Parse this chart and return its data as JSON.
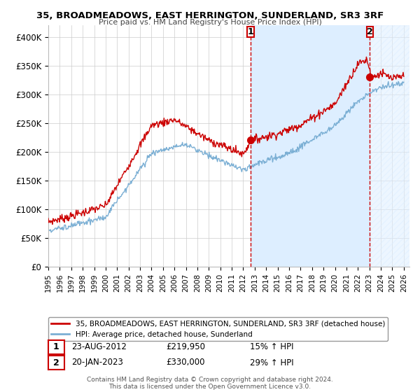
{
  "title": "35, BROADMEADOWS, EAST HERRINGTON, SUNDERLAND, SR3 3RF",
  "subtitle": "Price paid vs. HM Land Registry's House Price Index (HPI)",
  "ylim": [
    0,
    420000
  ],
  "yticks": [
    0,
    50000,
    100000,
    150000,
    200000,
    250000,
    300000,
    350000,
    400000
  ],
  "ytick_labels": [
    "£0",
    "£50K",
    "£100K",
    "£150K",
    "£200K",
    "£250K",
    "£300K",
    "£350K",
    "£400K"
  ],
  "x_start_year": 1995,
  "x_end_year": 2026,
  "red_line_color": "#cc0000",
  "blue_line_color": "#7bafd4",
  "shade_color": "#ddeeff",
  "marker1_date": 2012.65,
  "marker1_value": 219950,
  "marker1_label": "1",
  "marker1_text": "23-AUG-2012",
  "marker1_price": "£219,950",
  "marker1_hpi": "15% ↑ HPI",
  "marker2_date": 2023.05,
  "marker2_value": 330000,
  "marker2_label": "2",
  "marker2_text": "20-JAN-2023",
  "marker2_price": "£330,000",
  "marker2_hpi": "29% ↑ HPI",
  "legend_line1": "35, BROADMEADOWS, EAST HERRINGTON, SUNDERLAND, SR3 3RF (detached house)",
  "legend_line2": "HPI: Average price, detached house, Sunderland",
  "footer1": "Contains HM Land Registry data © Crown copyright and database right 2024.",
  "footer2": "This data is licensed under the Open Government Licence v3.0.",
  "background_color": "#ffffff",
  "grid_color": "#cccccc"
}
